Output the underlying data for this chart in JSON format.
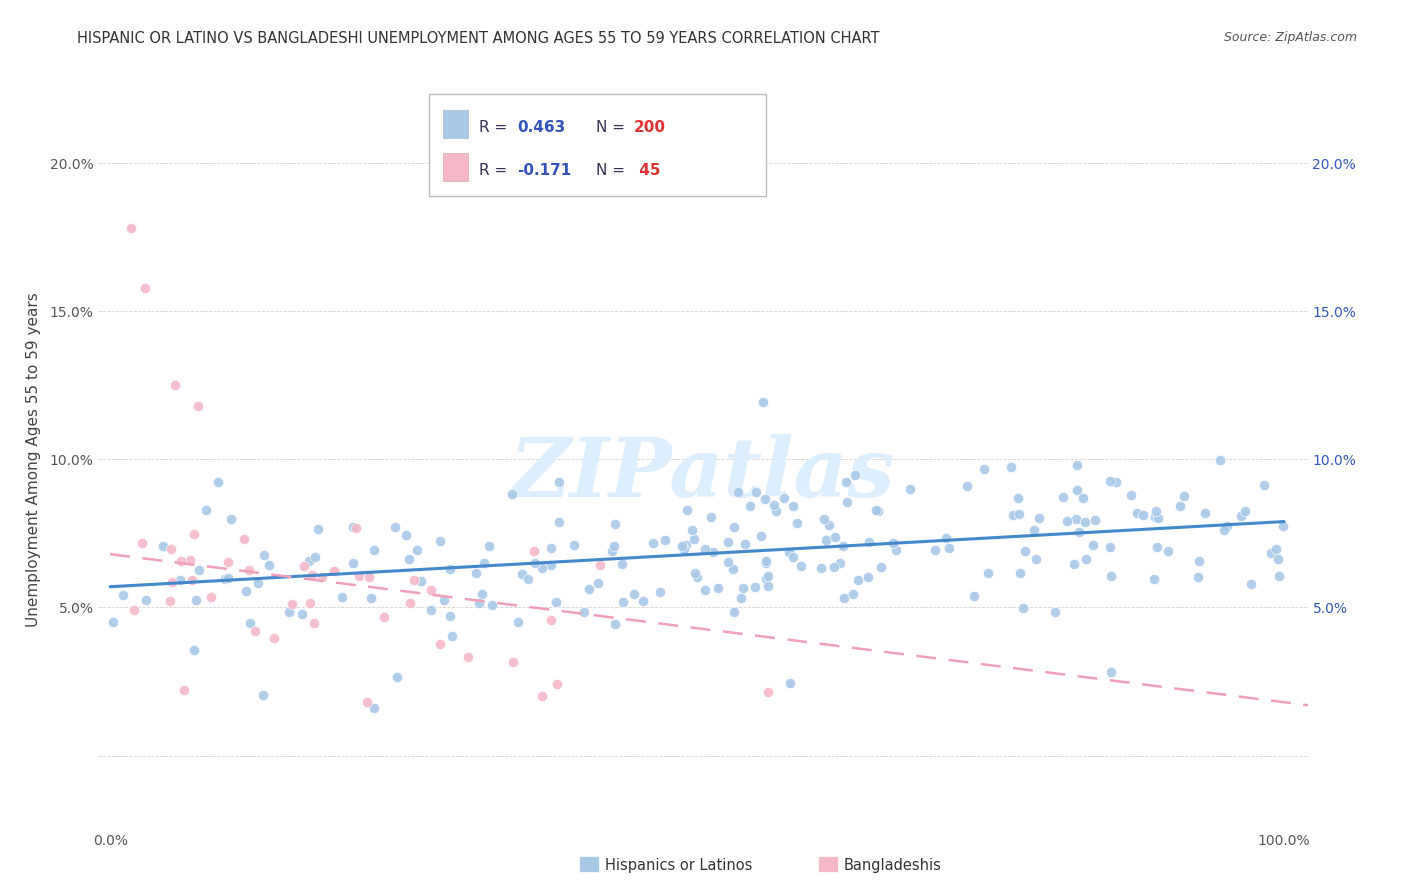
{
  "title": "HISPANIC OR LATINO VS BANGLADESHI UNEMPLOYMENT AMONG AGES 55 TO 59 YEARS CORRELATION CHART",
  "source": "Source: ZipAtlas.com",
  "ylabel": "Unemployment Among Ages 55 to 59 years",
  "xlim": [
    -0.01,
    1.02
  ],
  "ylim": [
    -0.025,
    0.225
  ],
  "yticks": [
    0.0,
    0.05,
    0.1,
    0.15,
    0.2
  ],
  "ytick_labels_left": [
    "",
    "5.0%",
    "10.0%",
    "15.0%",
    "20.0%"
  ],
  "ytick_labels_right": [
    "",
    "5.0%",
    "10.0%",
    "15.0%",
    "20.0%"
  ],
  "xtick_vals": [
    0.0,
    1.0
  ],
  "xtick_labels": [
    "0.0%",
    "100.0%"
  ],
  "blue_color": "#a8c8e8",
  "pink_color": "#f4b8c8",
  "blue_line_color": "#4488cc",
  "pink_line_color": "#f0a0b8",
  "legend_r_color": "#3355bb",
  "legend_n_color": "#dd3333",
  "legend_text_color": "#333355",
  "watermark_color": "#ddeeff",
  "watermark": "ZIPatlas",
  "blue_r": 0.463,
  "blue_n": 200,
  "pink_r": -0.171,
  "pink_n": 45,
  "blue_intercept": 0.057,
  "blue_slope": 0.022,
  "pink_intercept": 0.068,
  "pink_slope": -0.05,
  "title_fontsize": 10.5,
  "tick_fontsize": 10,
  "legend_fontsize": 11,
  "right_tick_color": "#3355bb"
}
